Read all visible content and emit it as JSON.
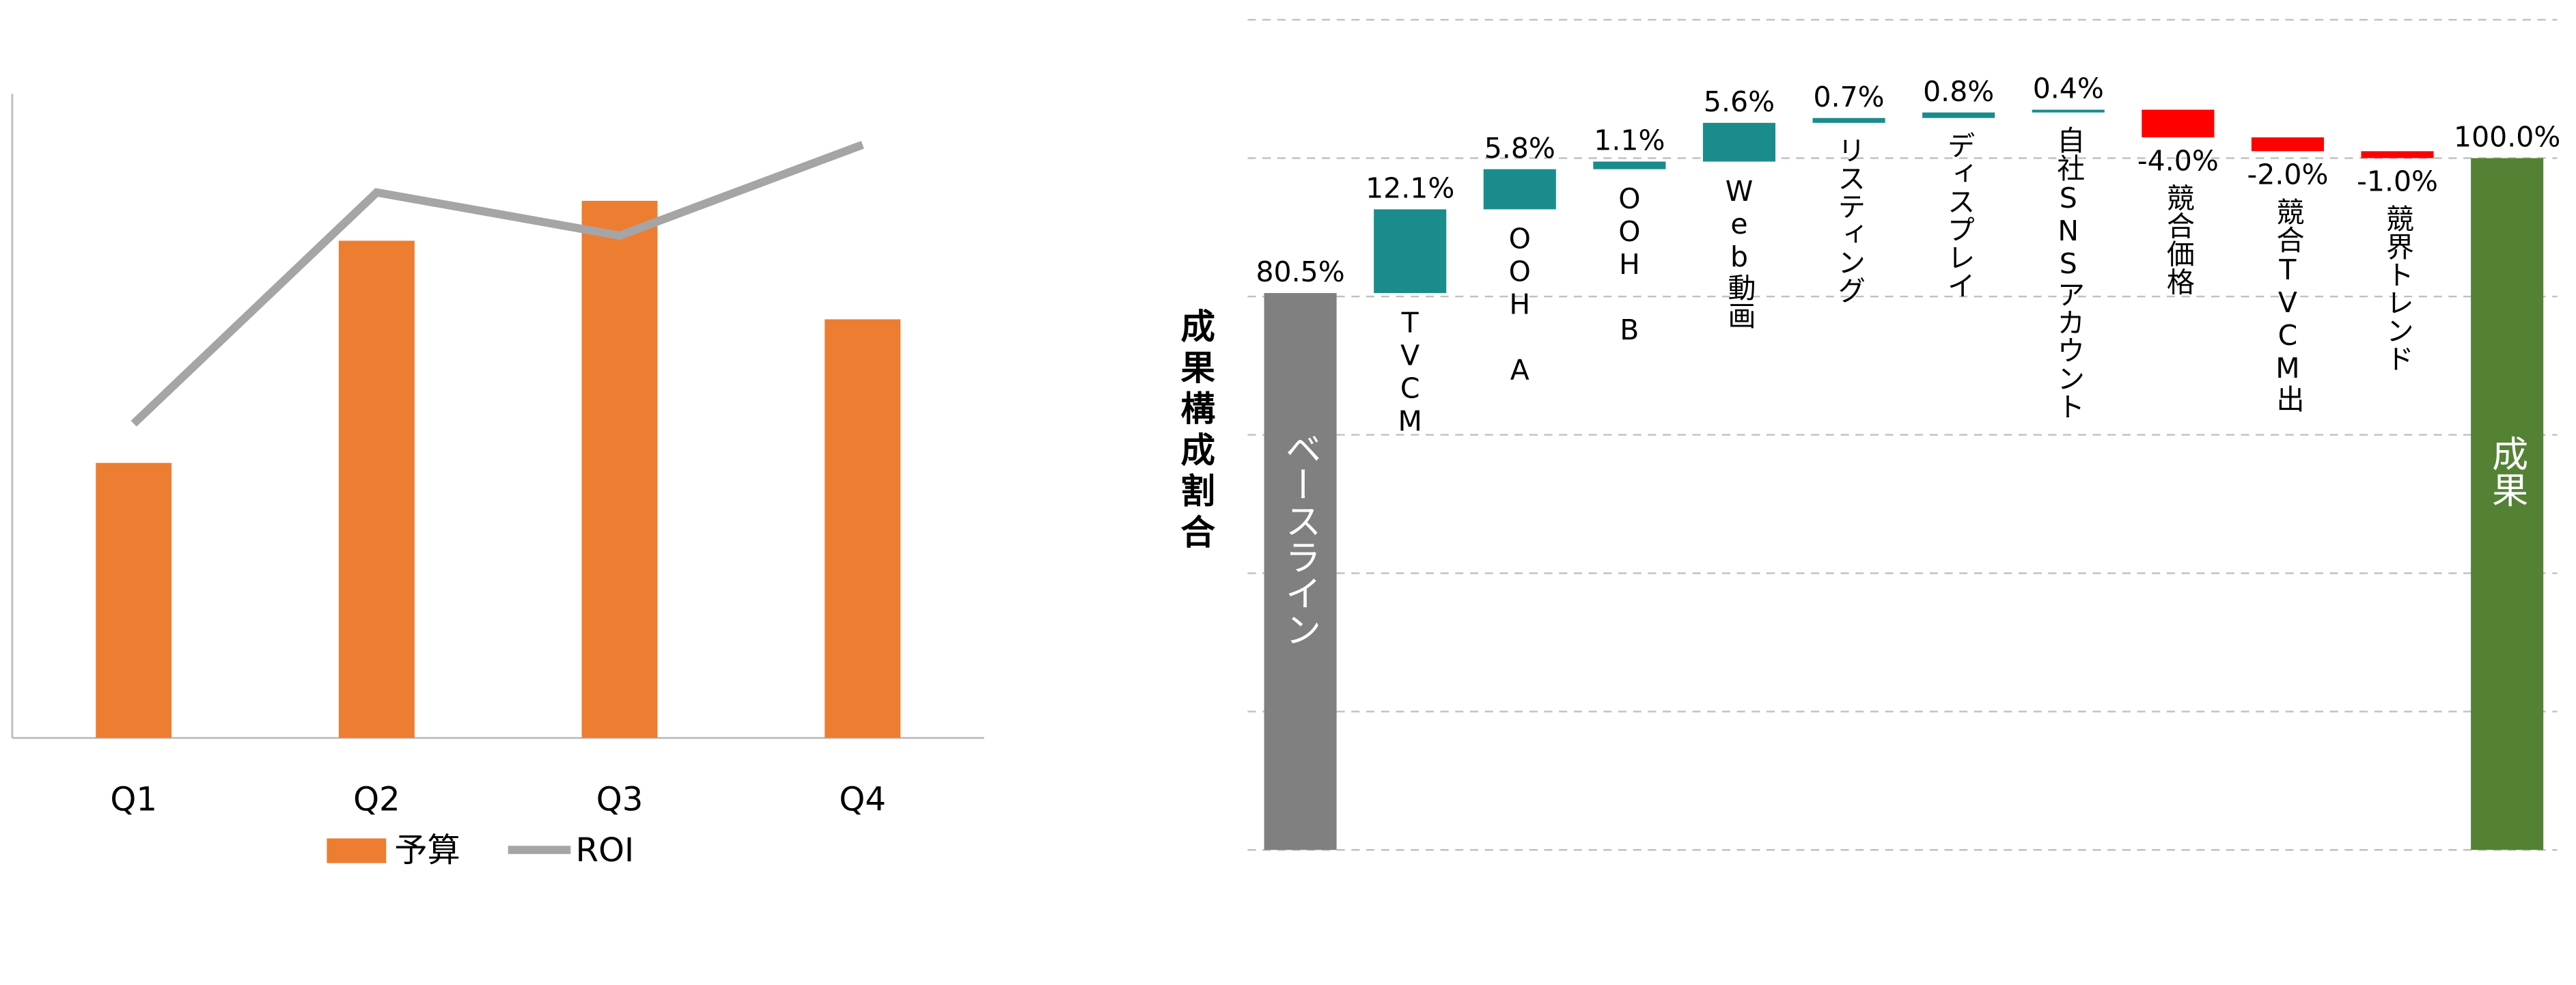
{
  "chart_data": [
    {
      "type": "combo",
      "categories": [
        "Q1",
        "Q2",
        "Q3",
        "Q4"
      ],
      "series": [
        {
          "name": "予算",
          "type": "bar",
          "color": "#ed7d31",
          "values": [
            42.7,
            77.2,
            83.4,
            65.0
          ]
        },
        {
          "name": "ROI",
          "type": "line",
          "color": "#a5a5a5",
          "values": [
            48.8,
            84.7,
            78.0,
            92.1
          ]
        }
      ],
      "ylim": [
        0,
        100
      ],
      "legend": "bottom"
    },
    {
      "type": "waterfall",
      "ylabel": "成果構成割合",
      "categories": [
        "ベースライン",
        "TVCM",
        "OOH A",
        "OOH B",
        "Web動画",
        "リスティング",
        "ディスプレイ",
        "自社SNSアカウント",
        "競合価格",
        "競合TVCM出",
        "競界トレンド",
        "成果"
      ],
      "values": [
        80.5,
        12.1,
        5.8,
        1.1,
        5.6,
        0.7,
        0.8,
        0.4,
        -4.0,
        -2.0,
        -1.0,
        100.0
      ],
      "value_labels": [
        "80.5%",
        "12.1%",
        "5.8%",
        "1.1%",
        "5.6%",
        "0.7%",
        "0.8%",
        "0.4%",
        "-4.0%",
        "-2.0%",
        "-1.0%",
        "100.0%"
      ],
      "colors": [
        "#808080",
        "#1a8c8c",
        "#1a8c8c",
        "#1a8c8c",
        "#1a8c8c",
        "#1a8c8c",
        "#1a8c8c",
        "#1a8c8c",
        "#ff0000",
        "#ff0000",
        "#ff0000",
        "#548235"
      ],
      "ylim": [
        0,
        120
      ],
      "yticks": [
        0,
        20,
        40,
        60,
        80,
        100,
        120
      ],
      "grid": true
    }
  ]
}
